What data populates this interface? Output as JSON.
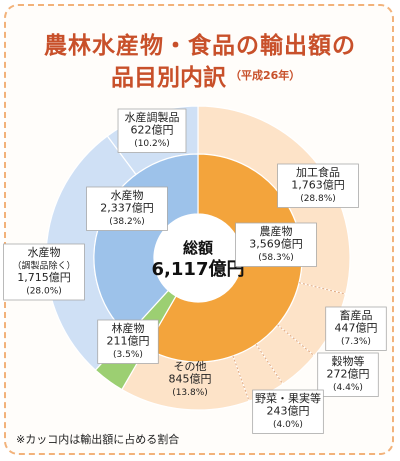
{
  "title": {
    "line1": "農林水産物・食品の輸出額の",
    "line2": "品目別内訳",
    "period": "（平成26年）"
  },
  "center": {
    "label": "総額",
    "value": "6,117億円"
  },
  "footnote": "※カッコ内は輸出額に占める割合",
  "chart_data": {
    "type": "pie",
    "total": 6117,
    "unit": "億円",
    "inner": [
      {
        "name": "農産物",
        "value": 3569,
        "value_label": "3,569億円",
        "pct": "(58.3%)",
        "color": "#f3a43c"
      },
      {
        "name": "林産物",
        "value": 211,
        "value_label": "211億円",
        "pct": "(3.5%)",
        "color": "#9ccf72"
      },
      {
        "name": "水産物",
        "value": 2337,
        "value_label": "2,337億円",
        "pct": "(38.2%)",
        "color": "#9dc2ea"
      }
    ],
    "outer": [
      {
        "name": "加工食品",
        "value": 1763,
        "value_label": "1,763億円",
        "pct": "(28.8%)",
        "color": "#fde3c8"
      },
      {
        "name": "畜産品",
        "value": 447,
        "value_label": "447億円",
        "pct": "(7.3%)",
        "color": "#fde3c8"
      },
      {
        "name": "穀物等",
        "value": 272,
        "value_label": "272億円",
        "pct": "(4.4%)",
        "color": "#fde3c8"
      },
      {
        "name": "野菜・果実等",
        "value": 243,
        "value_label": "243億円",
        "pct": "(4.0%)",
        "color": "#fde3c8"
      },
      {
        "name": "その他",
        "value": 845,
        "value_label": "845億円",
        "pct": "(13.8%)",
        "color": "#fde3c8"
      },
      {
        "name": "林産物",
        "value": 211,
        "value_label": "",
        "pct": "",
        "color": "#9ccf72"
      },
      {
        "name": "水産物",
        "sub": "（調製品除く）",
        "value": 1715,
        "value_label": "1,715億円",
        "pct": "(28.0%)",
        "color": "#cfe0f5"
      },
      {
        "name": "水産調製品",
        "value": 622,
        "value_label": "622億円",
        "pct": "(10.2%)",
        "color": "#cfe0f5"
      }
    ]
  }
}
